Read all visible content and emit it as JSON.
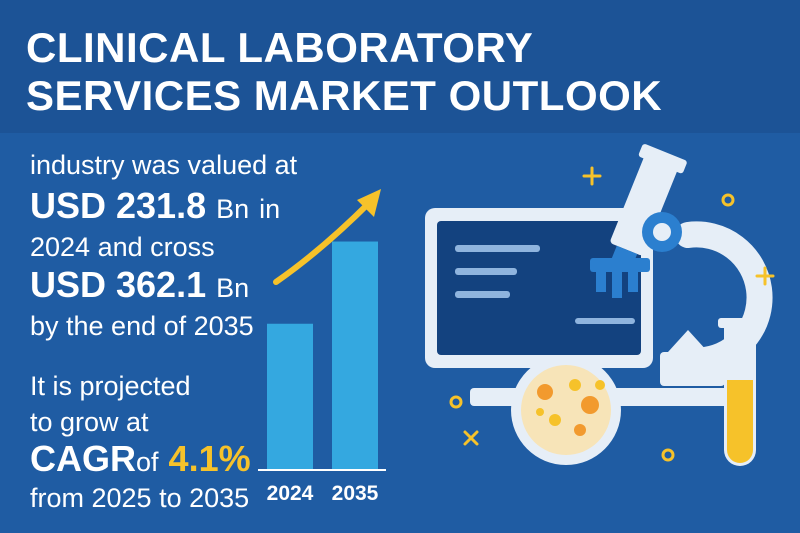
{
  "title": {
    "line1": "CLINICAL LABORATORY",
    "line2": "SERVICES MARKET OUTLOOK"
  },
  "stats": {
    "line1": "industry was valued at",
    "value_2024": "USD 231.8",
    "unit_2024": "Bn",
    "in_word": "in",
    "line3": "2024 and cross",
    "value_2035": "USD 362.1",
    "unit_2035": "Bn",
    "line5": "by the end of 2035",
    "proj1": "It is projected",
    "proj2": "to grow at",
    "cagr_label": "CAGR",
    "of_word": "of",
    "cagr_value": "4.1%",
    "period": "from 2025 to 2035"
  },
  "chart_data": {
    "type": "bar",
    "categories": [
      "2024",
      "2035"
    ],
    "values": [
      231.8,
      362.1
    ],
    "title": "",
    "xlabel": "",
    "ylabel": "",
    "ylim": [
      0,
      420
    ],
    "grid": false,
    "trend_arrow": true
  },
  "colors": {
    "header_bg": "#1c5396",
    "body_bg": "#1f5ca3",
    "bar": "#34a8e0",
    "arrow": "#f6c22a",
    "accent": "#f6c22a",
    "screen": "#13427f",
    "metal": "#e6eef7",
    "blue_part": "#2b7fcf"
  },
  "icons": [
    "microscope-icon",
    "monitor-icon",
    "petri-dish-icon",
    "test-tube-icon",
    "sparkle-icon"
  ]
}
